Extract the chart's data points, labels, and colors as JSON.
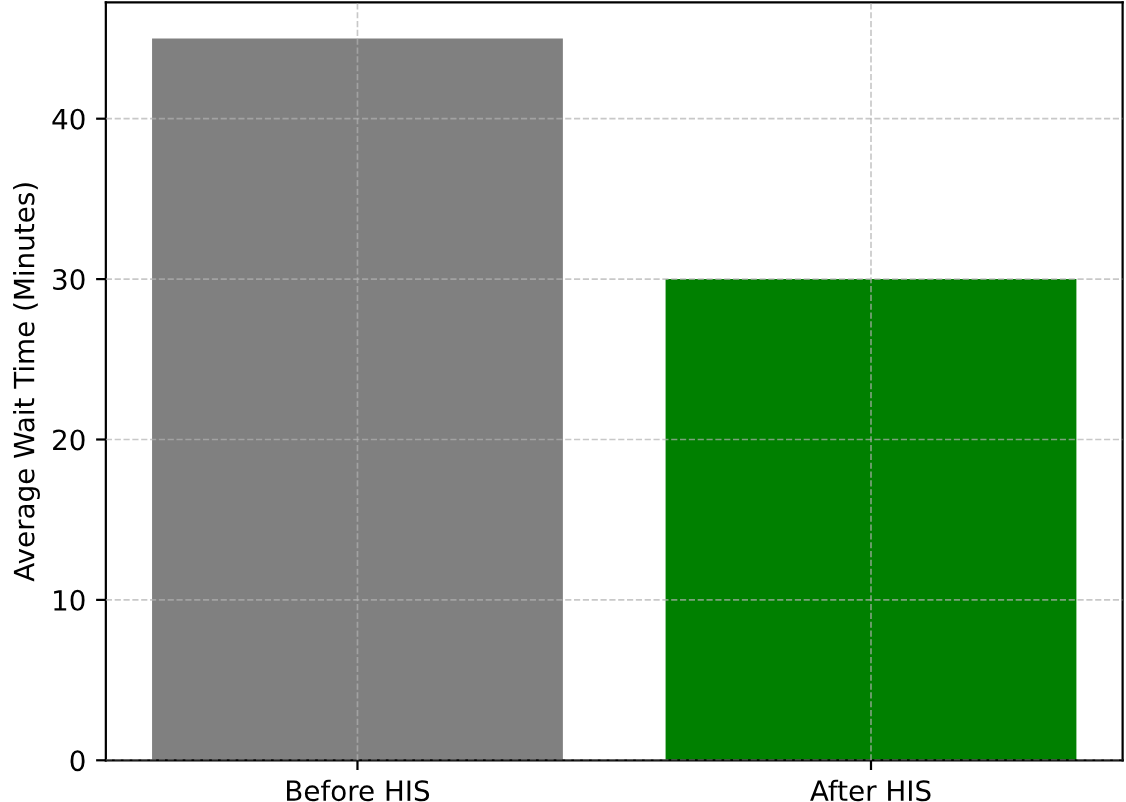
{
  "chart_data": {
    "type": "bar",
    "ylabel": "Average Wait Time (Minutes)",
    "categories": [
      "Before HIS",
      "After HIS"
    ],
    "values": [
      45,
      30
    ],
    "colors": [
      "#808080",
      "#008000"
    ],
    "ylim": [
      0,
      47.25
    ],
    "yticks": [
      0,
      10,
      20,
      30,
      40
    ],
    "grid": true
  }
}
